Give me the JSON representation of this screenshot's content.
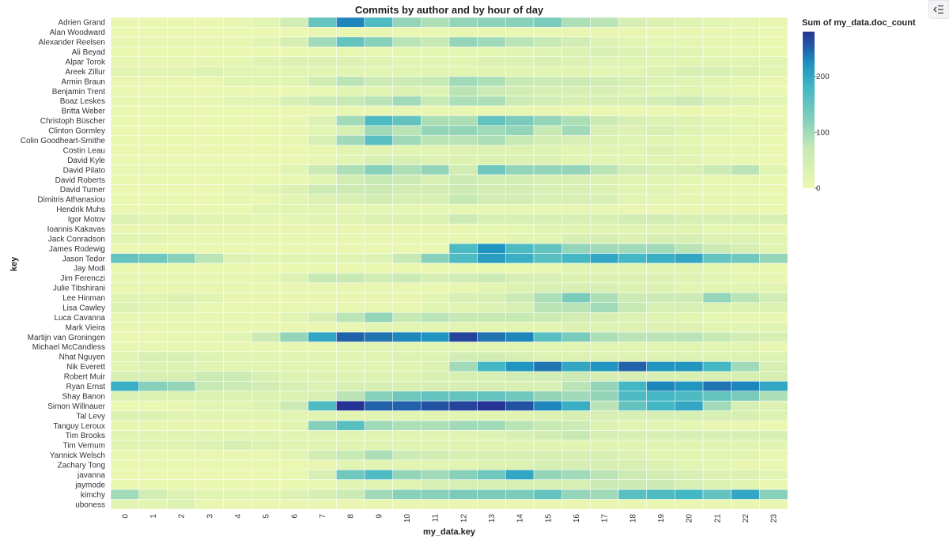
{
  "panel": {
    "collapse_icon": "collapse-panel-icon"
  },
  "chart_data": {
    "type": "heatmap",
    "title": "Commits by author and by hour of day",
    "xlabel": "my_data.key",
    "ylabel": "key",
    "legend_title": "Sum of my_data.doc_count",
    "legend_ticks": [
      "0",
      "100",
      "200"
    ],
    "value_range": [
      0,
      280
    ],
    "colorscheme": "yellowgreenblue",
    "x": [
      "0",
      "1",
      "2",
      "3",
      "4",
      "5",
      "6",
      "7",
      "8",
      "9",
      "10",
      "11",
      "12",
      "13",
      "14",
      "15",
      "16",
      "17",
      "18",
      "19",
      "20",
      "21",
      "22",
      "23"
    ],
    "y": [
      "Adrien Grand",
      "Alan Woodward",
      "Alexander Reelsen",
      "Ali Beyad",
      "Alpar Torok",
      "Areek Zillur",
      "Armin Braun",
      "Benjamin Trent",
      "Boaz Leskes",
      "Britta Weber",
      "Christoph Büscher",
      "Clinton Gormley",
      "Colin Goodheart-Smithe",
      "Costin Leau",
      "David Kyle",
      "David Pilato",
      "David Roberts",
      "David Turner",
      "Dimitris Athanasiou",
      "Hendrik Muhs",
      "Igor Motov",
      "Ioannis Kakavas",
      "Jack Conradson",
      "James Rodewig",
      "Jason Tedor",
      "Jay Modi",
      "Jim Ferenczi",
      "Julie Tibshirani",
      "Lee Hinman",
      "Lisa Cawley",
      "Luca Cavanna",
      "Mark Vieira",
      "Martijn van Groningen",
      "Michael McCandless",
      "Nhat Nguyen",
      "Nik Everett",
      "Robert Muir",
      "Ryan Ernst",
      "Shay Banon",
      "Simon Willnauer",
      "Tal Levy",
      "Tanguy Leroux",
      "Tim Brooks",
      "Tim Vernum",
      "Yannick Welsch",
      "Zachary Tong",
      "javanna",
      "jaymode",
      "kimchy",
      "uboness"
    ],
    "values": [
      [
        5,
        5,
        5,
        5,
        10,
        20,
        50,
        150,
        230,
        170,
        110,
        90,
        110,
        115,
        120,
        130,
        90,
        80,
        40,
        30,
        25,
        20,
        15,
        10
      ],
      [
        5,
        5,
        5,
        5,
        5,
        5,
        5,
        10,
        10,
        10,
        10,
        10,
        10,
        10,
        10,
        10,
        10,
        10,
        10,
        10,
        10,
        10,
        10,
        5
      ],
      [
        10,
        10,
        10,
        10,
        10,
        20,
        40,
        100,
        150,
        120,
        80,
        70,
        110,
        100,
        80,
        70,
        50,
        30,
        20,
        15,
        15,
        10,
        10,
        5
      ],
      [
        5,
        5,
        5,
        5,
        5,
        5,
        5,
        10,
        10,
        10,
        15,
        15,
        15,
        15,
        20,
        25,
        30,
        40,
        30,
        25,
        20,
        15,
        10,
        5
      ],
      [
        10,
        10,
        10,
        15,
        15,
        25,
        30,
        30,
        30,
        25,
        20,
        20,
        20,
        30,
        35,
        40,
        30,
        25,
        25,
        20,
        20,
        20,
        20,
        20
      ],
      [
        20,
        20,
        20,
        30,
        20,
        20,
        20,
        20,
        20,
        20,
        20,
        20,
        20,
        20,
        20,
        20,
        20,
        20,
        20,
        30,
        40,
        40,
        30,
        20
      ],
      [
        10,
        10,
        10,
        10,
        20,
        20,
        20,
        50,
        80,
        60,
        60,
        70,
        100,
        90,
        70,
        60,
        60,
        50,
        40,
        30,
        25,
        20,
        15,
        10
      ],
      [
        5,
        5,
        5,
        5,
        5,
        5,
        5,
        10,
        20,
        20,
        30,
        30,
        80,
        60,
        50,
        40,
        40,
        40,
        30,
        25,
        20,
        15,
        10,
        5
      ],
      [
        10,
        10,
        10,
        10,
        20,
        20,
        40,
        60,
        70,
        80,
        100,
        70,
        90,
        90,
        60,
        50,
        40,
        40,
        40,
        50,
        60,
        40,
        30,
        20
      ],
      [
        5,
        5,
        5,
        5,
        5,
        5,
        5,
        5,
        10,
        10,
        10,
        10,
        10,
        10,
        10,
        10,
        5,
        5,
        5,
        5,
        5,
        5,
        5,
        5
      ],
      [
        5,
        5,
        5,
        5,
        5,
        5,
        10,
        30,
        100,
        170,
        150,
        90,
        90,
        150,
        130,
        110,
        90,
        60,
        40,
        30,
        25,
        20,
        15,
        10
      ],
      [
        5,
        5,
        5,
        5,
        5,
        5,
        10,
        20,
        40,
        100,
        80,
        110,
        110,
        100,
        110,
        70,
        100,
        40,
        30,
        40,
        25,
        20,
        15,
        10
      ],
      [
        5,
        5,
        5,
        5,
        5,
        5,
        10,
        40,
        100,
        160,
        100,
        80,
        80,
        90,
        70,
        50,
        40,
        30,
        25,
        20,
        15,
        10,
        10,
        5
      ],
      [
        5,
        5,
        5,
        5,
        5,
        5,
        5,
        10,
        20,
        20,
        20,
        20,
        30,
        30,
        30,
        30,
        20,
        20,
        20,
        30,
        20,
        15,
        10,
        5
      ],
      [
        5,
        5,
        5,
        5,
        5,
        5,
        5,
        10,
        20,
        40,
        40,
        30,
        30,
        30,
        30,
        30,
        20,
        20,
        20,
        20,
        20,
        15,
        10,
        5
      ],
      [
        10,
        10,
        10,
        10,
        10,
        10,
        20,
        60,
        90,
        120,
        90,
        110,
        50,
        140,
        110,
        110,
        110,
        80,
        50,
        40,
        40,
        60,
        80,
        20
      ],
      [
        5,
        5,
        5,
        5,
        5,
        5,
        10,
        20,
        50,
        70,
        60,
        40,
        60,
        50,
        50,
        40,
        40,
        30,
        20,
        20,
        15,
        10,
        10,
        5
      ],
      [
        5,
        5,
        5,
        5,
        10,
        20,
        30,
        60,
        60,
        60,
        50,
        50,
        60,
        50,
        50,
        40,
        40,
        30,
        20,
        20,
        15,
        10,
        10,
        5
      ],
      [
        5,
        5,
        5,
        5,
        10,
        10,
        20,
        30,
        40,
        50,
        40,
        40,
        70,
        50,
        50,
        40,
        40,
        40,
        20,
        15,
        15,
        10,
        10,
        5
      ],
      [
        5,
        5,
        5,
        5,
        5,
        20,
        20,
        20,
        15,
        15,
        15,
        15,
        15,
        15,
        15,
        15,
        15,
        15,
        10,
        10,
        10,
        10,
        10,
        5
      ],
      [
        30,
        20,
        30,
        20,
        20,
        15,
        15,
        20,
        20,
        30,
        30,
        30,
        60,
        40,
        40,
        40,
        40,
        40,
        50,
        50,
        40,
        40,
        40,
        40
      ],
      [
        10,
        10,
        10,
        10,
        10,
        10,
        10,
        10,
        10,
        10,
        10,
        10,
        10,
        15,
        15,
        20,
        20,
        20,
        20,
        20,
        20,
        15,
        15,
        10
      ],
      [
        20,
        20,
        10,
        10,
        10,
        10,
        10,
        10,
        10,
        10,
        10,
        10,
        10,
        10,
        20,
        20,
        40,
        40,
        30,
        40,
        40,
        30,
        30,
        20
      ],
      [
        5,
        5,
        5,
        5,
        5,
        5,
        5,
        5,
        5,
        5,
        5,
        5,
        170,
        220,
        170,
        150,
        110,
        100,
        100,
        100,
        80,
        60,
        40,
        20
      ],
      [
        150,
        140,
        120,
        80,
        30,
        20,
        20,
        20,
        20,
        30,
        70,
        120,
        170,
        210,
        190,
        160,
        180,
        200,
        180,
        190,
        200,
        150,
        140,
        110
      ],
      [
        5,
        5,
        5,
        5,
        5,
        5,
        5,
        5,
        5,
        5,
        5,
        5,
        5,
        5,
        5,
        10,
        20,
        20,
        20,
        20,
        20,
        15,
        10,
        5
      ],
      [
        10,
        10,
        10,
        10,
        10,
        15,
        30,
        70,
        70,
        50,
        60,
        40,
        50,
        60,
        40,
        40,
        30,
        30,
        30,
        30,
        25,
        20,
        15,
        10
      ],
      [
        10,
        10,
        10,
        10,
        10,
        10,
        10,
        10,
        10,
        10,
        10,
        10,
        10,
        20,
        30,
        40,
        40,
        40,
        30,
        30,
        20,
        20,
        20,
        20
      ],
      [
        20,
        20,
        30,
        20,
        10,
        10,
        10,
        10,
        10,
        10,
        10,
        20,
        40,
        40,
        60,
        90,
        130,
        90,
        60,
        60,
        60,
        110,
        80,
        50
      ],
      [
        30,
        20,
        20,
        10,
        10,
        10,
        10,
        10,
        10,
        10,
        10,
        20,
        20,
        30,
        40,
        80,
        80,
        100,
        70,
        40,
        40,
        30,
        30,
        30
      ],
      [
        10,
        10,
        10,
        10,
        10,
        10,
        20,
        40,
        80,
        110,
        70,
        80,
        70,
        70,
        70,
        60,
        50,
        40,
        30,
        25,
        20,
        15,
        10,
        10
      ],
      [
        10,
        10,
        10,
        10,
        10,
        10,
        10,
        10,
        10,
        20,
        20,
        20,
        20,
        20,
        20,
        20,
        30,
        30,
        30,
        30,
        30,
        20,
        20,
        20
      ],
      [
        5,
        5,
        10,
        10,
        20,
        60,
        110,
        200,
        250,
        240,
        230,
        220,
        270,
        240,
        230,
        160,
        130,
        90,
        80,
        80,
        80,
        70,
        50,
        40
      ],
      [
        10,
        10,
        10,
        10,
        10,
        10,
        10,
        10,
        20,
        20,
        20,
        20,
        20,
        20,
        20,
        20,
        20,
        20,
        20,
        20,
        20,
        20,
        20,
        10
      ],
      [
        20,
        40,
        40,
        30,
        20,
        20,
        20,
        20,
        20,
        20,
        30,
        30,
        50,
        50,
        40,
        30,
        30,
        30,
        30,
        30,
        30,
        30,
        30,
        30
      ],
      [
        20,
        30,
        30,
        20,
        20,
        20,
        20,
        20,
        20,
        20,
        20,
        30,
        100,
        180,
        220,
        240,
        200,
        220,
        250,
        220,
        220,
        180,
        100,
        40
      ],
      [
        40,
        40,
        40,
        60,
        60,
        40,
        30,
        30,
        30,
        30,
        30,
        40,
        40,
        40,
        50,
        50,
        60,
        40,
        40,
        40,
        40,
        40,
        40,
        40
      ],
      [
        190,
        120,
        110,
        70,
        60,
        50,
        40,
        30,
        40,
        40,
        40,
        40,
        40,
        40,
        40,
        40,
        80,
        110,
        180,
        230,
        220,
        240,
        230,
        200
      ],
      [
        30,
        30,
        30,
        30,
        30,
        30,
        30,
        40,
        80,
        120,
        140,
        150,
        150,
        150,
        140,
        110,
        100,
        110,
        170,
        180,
        170,
        150,
        130,
        90
      ],
      [
        5,
        5,
        10,
        20,
        20,
        30,
        60,
        170,
        280,
        250,
        250,
        260,
        270,
        290,
        260,
        230,
        190,
        80,
        150,
        180,
        200,
        100,
        40,
        30
      ],
      [
        30,
        30,
        20,
        20,
        20,
        20,
        20,
        20,
        20,
        20,
        20,
        20,
        20,
        20,
        20,
        30,
        40,
        40,
        40,
        40,
        40,
        40,
        40,
        30
      ],
      [
        10,
        10,
        10,
        10,
        10,
        10,
        20,
        120,
        160,
        100,
        90,
        90,
        100,
        100,
        80,
        70,
        60,
        30,
        20,
        20,
        15,
        10,
        10,
        5
      ],
      [
        20,
        20,
        20,
        20,
        20,
        20,
        20,
        20,
        20,
        20,
        20,
        20,
        20,
        30,
        40,
        50,
        70,
        40,
        40,
        40,
        40,
        40,
        40,
        40
      ],
      [
        20,
        20,
        20,
        30,
        40,
        30,
        20,
        20,
        20,
        20,
        20,
        20,
        20,
        20,
        20,
        20,
        20,
        20,
        20,
        20,
        20,
        20,
        20,
        20
      ],
      [
        10,
        10,
        10,
        10,
        10,
        10,
        20,
        50,
        70,
        90,
        60,
        50,
        40,
        40,
        40,
        40,
        40,
        40,
        30,
        20,
        20,
        20,
        20,
        10
      ],
      [
        5,
        5,
        5,
        5,
        5,
        5,
        5,
        10,
        20,
        20,
        20,
        20,
        20,
        30,
        30,
        40,
        40,
        40,
        40,
        30,
        20,
        15,
        10,
        5
      ],
      [
        5,
        5,
        5,
        5,
        5,
        5,
        10,
        40,
        140,
        170,
        110,
        100,
        120,
        140,
        200,
        110,
        100,
        80,
        60,
        50,
        40,
        30,
        30,
        20
      ],
      [
        5,
        5,
        5,
        5,
        5,
        5,
        5,
        10,
        20,
        20,
        20,
        40,
        40,
        40,
        40,
        40,
        40,
        60,
        60,
        60,
        40,
        30,
        20,
        10
      ],
      [
        100,
        50,
        30,
        20,
        20,
        20,
        30,
        40,
        60,
        100,
        120,
        120,
        130,
        130,
        130,
        150,
        110,
        100,
        160,
        170,
        180,
        150,
        200,
        120
      ],
      [
        20,
        20,
        30,
        10,
        10,
        10,
        10,
        10,
        10,
        10,
        10,
        10,
        10,
        10,
        10,
        10,
        10,
        10,
        10,
        10,
        10,
        10,
        10,
        10
      ]
    ]
  }
}
